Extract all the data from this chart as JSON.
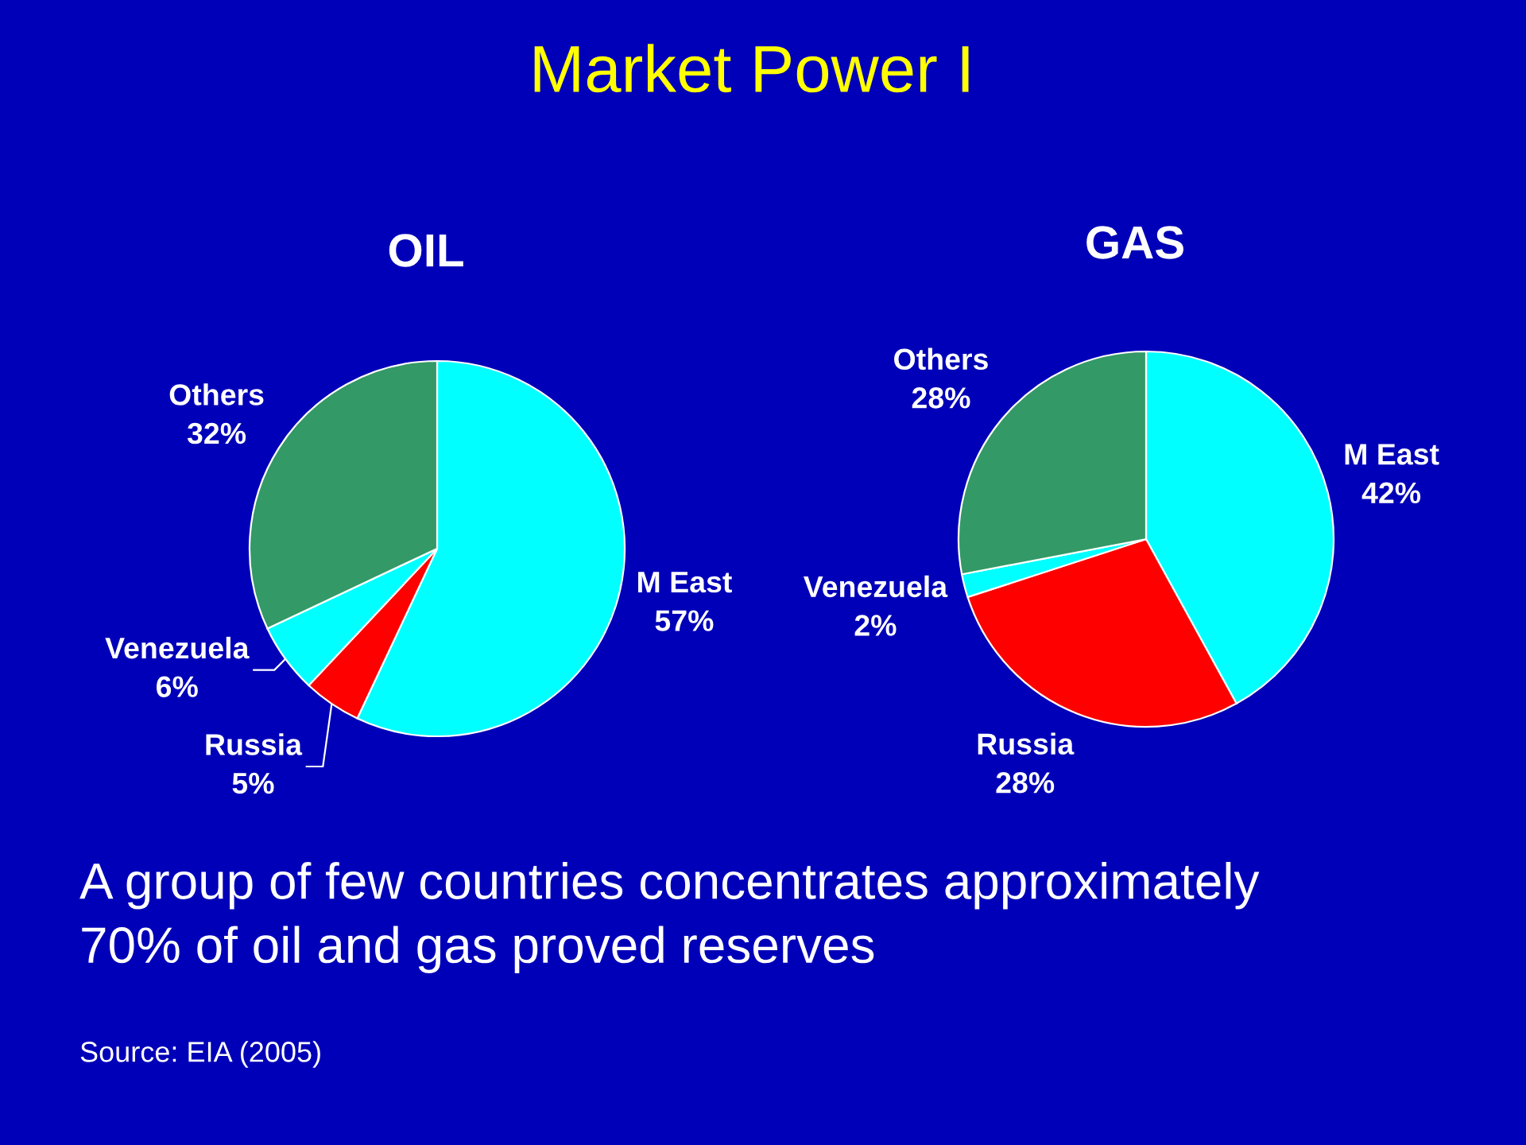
{
  "chart_data": [
    {
      "type": "other",
      "title": "Market Power I",
      "annotations": [
        "A group of few countries concentrates approximately 70% of oil and gas proved reserves",
        "Source: EIA (2005)"
      ]
    },
    {
      "type": "pie",
      "title": "OIL",
      "categories": [
        "M East",
        "Russia",
        "Venezuela",
        "Others"
      ],
      "values": [
        57,
        5,
        6,
        32
      ],
      "colors": [
        "#00ffff",
        "#ff0000",
        "#00ffff",
        "#339966"
      ],
      "value_labels": [
        "57%",
        "5%",
        "6%",
        "32%"
      ]
    },
    {
      "type": "pie",
      "title": "GAS",
      "categories": [
        "M East",
        "Russia",
        "Venezuela",
        "Others"
      ],
      "values": [
        42,
        28,
        2,
        28
      ],
      "colors": [
        "#00ffff",
        "#ff0000",
        "#00ffff",
        "#339966"
      ],
      "value_labels": [
        "42%",
        "28%",
        "2%",
        "28%"
      ]
    }
  ]
}
